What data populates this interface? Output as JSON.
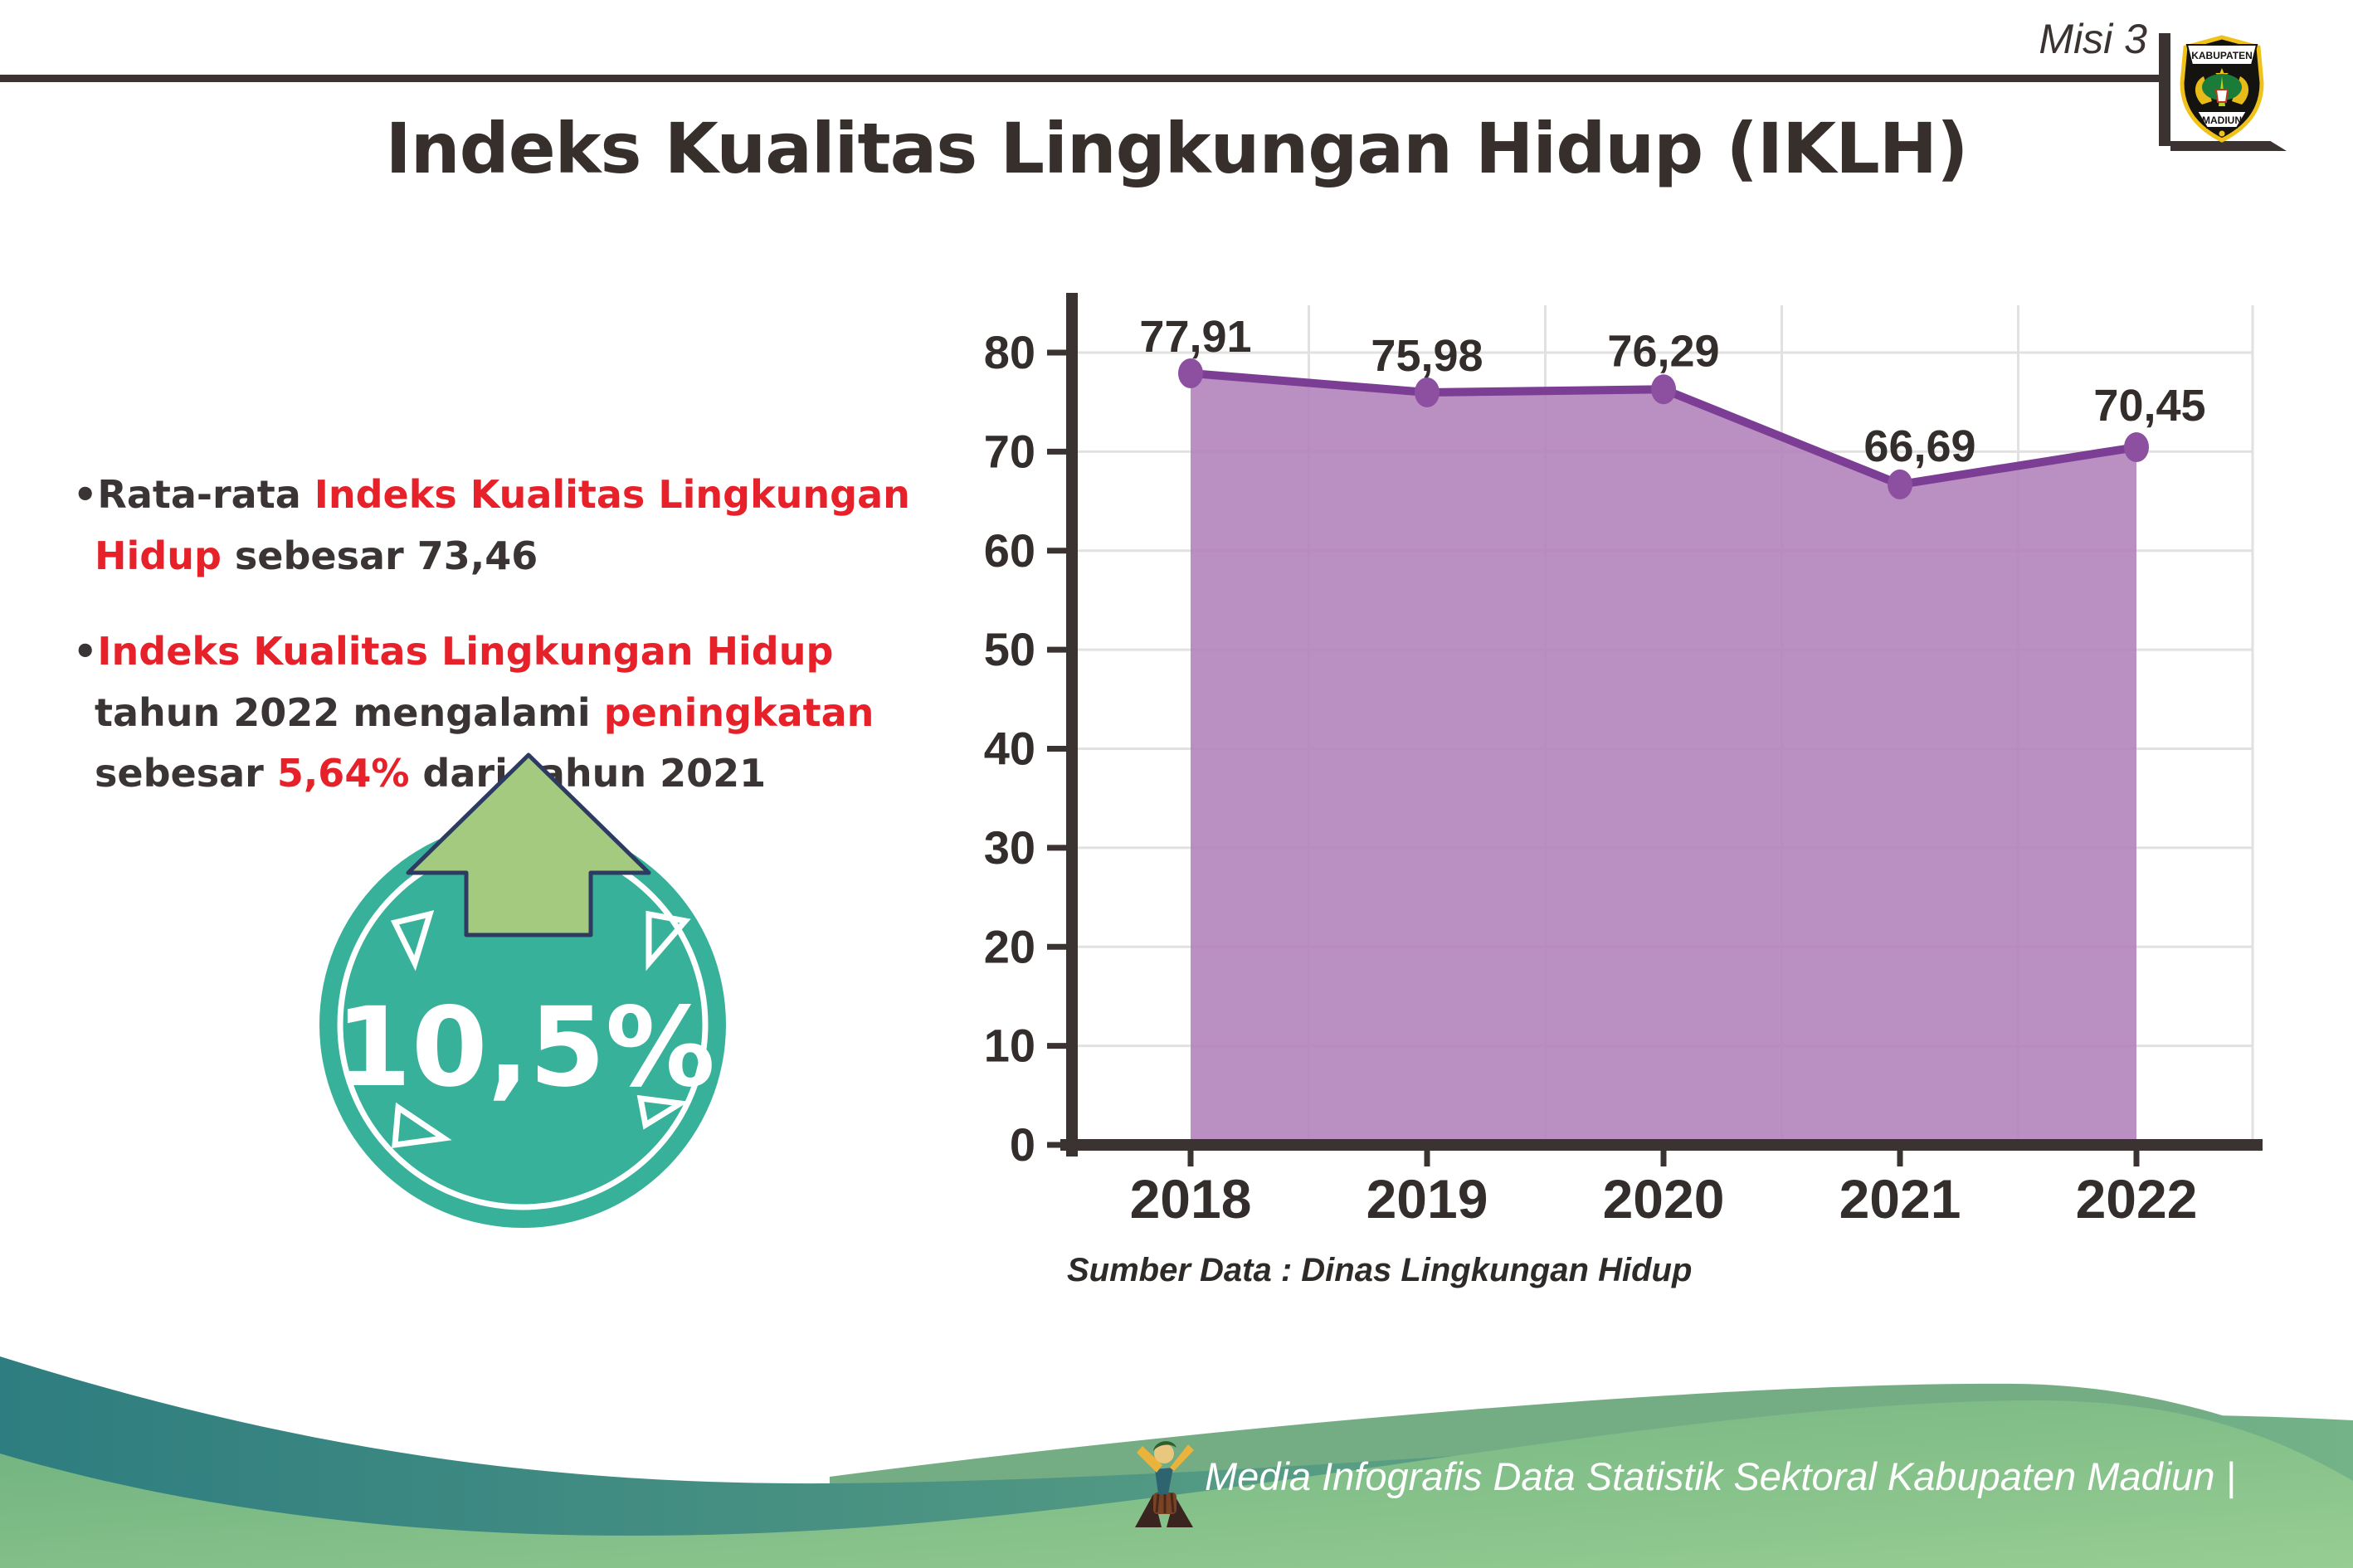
{
  "header": {
    "misi": "Misi 3",
    "title": "Indeks Kualitas Lingkungan Hidup (IKLH)",
    "logo_top": "KABUPATEN",
    "logo_bottom": "MADIUN"
  },
  "bullets": [
    {
      "segments": [
        {
          "text": "•Rata-rata ",
          "style": "dark"
        },
        {
          "text": "Indeks Kualitas Lingkungan Hidup",
          "style": "red"
        },
        {
          "text": " sebesar 73,46",
          "style": "dark"
        }
      ]
    },
    {
      "segments": [
        {
          "text": "•",
          "style": "dark"
        },
        {
          "text": "Indeks Kualitas Lingkungan Hidup",
          "style": "red"
        },
        {
          "text": " tahun 2022 mengalami ",
          "style": "dark"
        },
        {
          "text": "peningkatan",
          "style": "red"
        },
        {
          "text": " sebesar ",
          "style": "dark"
        },
        {
          "text": "5,64%",
          "style": "red"
        },
        {
          "text": " dari tahun 2021",
          "style": "dark"
        }
      ]
    }
  ],
  "badge": {
    "value": "10,5%",
    "circle_color": "#38b19a",
    "arrow_color": "#a3ca7f"
  },
  "chart_data": {
    "type": "area",
    "categories": [
      "2018",
      "2019",
      "2020",
      "2021",
      "2022"
    ],
    "values": [
      77.91,
      75.98,
      76.29,
      66.69,
      70.45
    ],
    "point_labels": [
      "77,91",
      "75,98",
      "76,29",
      "66,69",
      "70,45"
    ],
    "ylim": [
      0,
      80
    ],
    "yticks": [
      0,
      10,
      20,
      30,
      40,
      50,
      60,
      70,
      80
    ],
    "grid": true,
    "legend": "none",
    "source": "Sumber Data : Dinas Lingkungan Hidup",
    "area_color": "#b180ba",
    "line_color": "#7c3d95",
    "marker_color": "#8d4f9f"
  },
  "footer": {
    "credit": "Media Infografis Data Statistik Sektoral Kabupaten Madiun |"
  },
  "colors": {
    "dark_text": "#3a3434",
    "red_text": "#e62129",
    "footer_teal": "#2e7d80",
    "footer_green": "#8fc98e"
  }
}
